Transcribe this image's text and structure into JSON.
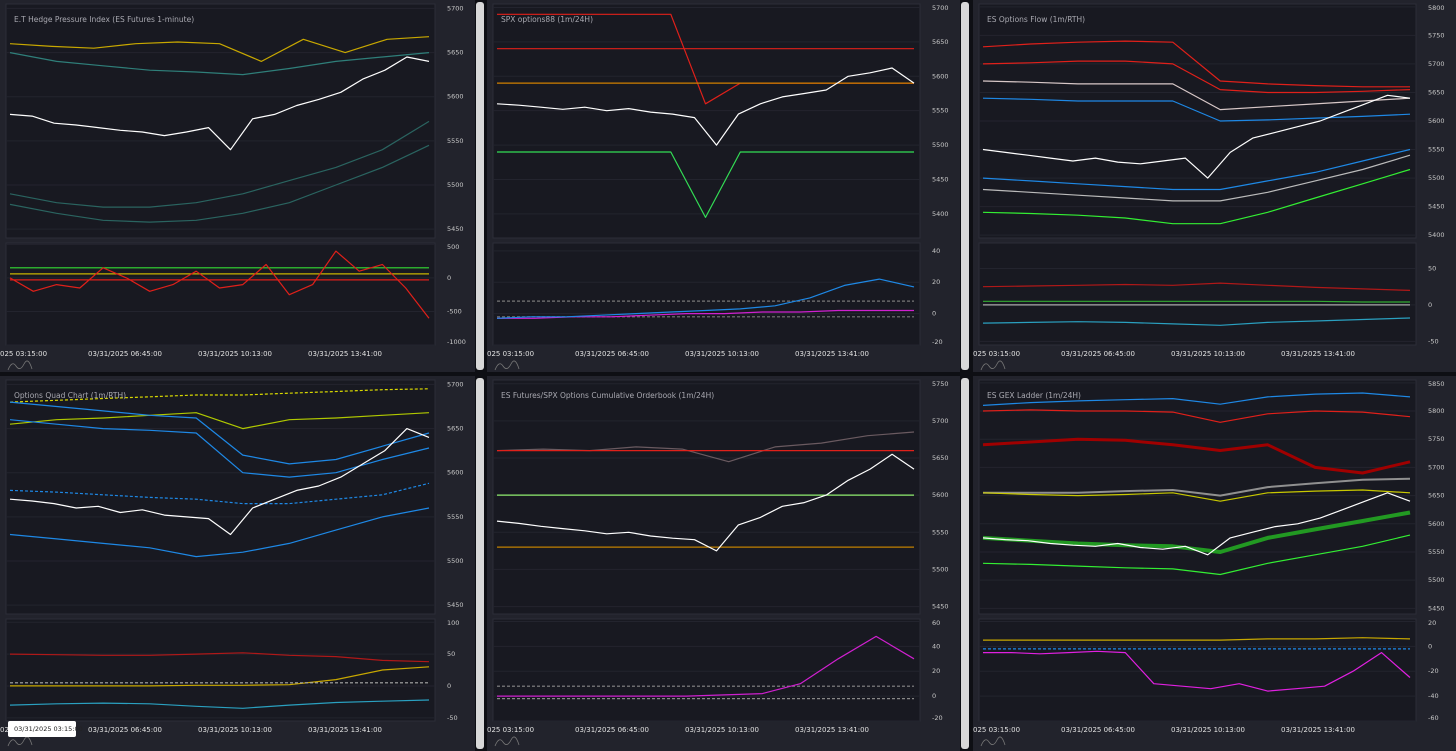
{
  "chart_data": [
    {
      "type": "line",
      "title": "E.T Hedge Pressure Index (ES Futures 1-minute)",
      "xticks": [
        "025 03:15:00",
        "03/31/2025 06:45:00",
        "03/31/2025 10:13:00",
        "03/31/2025 13:41:00"
      ],
      "ylim": [
        5440,
        5705
      ],
      "yticks": [
        5450,
        5500,
        5550,
        5600,
        5650,
        5700
      ],
      "series": [
        {
          "color": "#c8a800",
          "values": [
            5660,
            5657,
            5655,
            5660,
            5662,
            5660,
            5640,
            5665,
            5650,
            5665,
            5668
          ]
        },
        {
          "color": "#2f7f7a",
          "values": [
            5650,
            5640,
            5635,
            5630,
            5628,
            5625,
            5632,
            5640,
            5645,
            5650
          ]
        },
        {
          "color": "#2a6460",
          "values": [
            5490,
            5480,
            5475,
            5475,
            5480,
            5490,
            5505,
            5520,
            5540,
            5572
          ]
        },
        {
          "color": "#2a6460",
          "values": [
            5478,
            5468,
            5460,
            5458,
            5460,
            5468,
            5480,
            5500,
            5520,
            5545
          ]
        },
        {
          "color": "#ffffff",
          "values": [
            5580,
            5578,
            5570,
            5568,
            5565,
            5562,
            5560,
            5556,
            5560,
            5565,
            5540,
            5575,
            5580,
            5590,
            5597,
            5605,
            5620,
            5630,
            5645,
            5640
          ]
        }
      ],
      "lower": {
        "ylim": [
          -1000,
          520
        ],
        "yticks": [
          -1000,
          -500,
          0,
          500
        ],
        "series": [
          {
            "color": "#33dd33",
            "values": [
              150,
              150
            ]
          },
          {
            "color": "#c8b400",
            "values": [
              60,
              60
            ]
          },
          {
            "color": "#e0201a",
            "values": [
              -30,
              -30
            ]
          },
          {
            "color": "#e0201a",
            "values": [
              0,
              -200,
              -100,
              -150,
              150,
              0,
              -200,
              -100,
              100,
              -150,
              -100,
              200,
              -250,
              -100,
              400,
              100,
              200,
              -150,
              -600
            ]
          }
        ]
      }
    },
    {
      "type": "line",
      "title": "SPX options88 (1m/24H)",
      "xticks": [
        "025 03:15:00",
        "03/31/2025 06:45:00",
        "03/31/2025 10:13:00",
        "03/31/2025 13:41:00"
      ],
      "ylim": [
        5365,
        5705
      ],
      "yticks": [
        5400,
        5450,
        5500,
        5550,
        5600,
        5650,
        5700
      ],
      "series": [
        {
          "color": "#e0201a",
          "values": [
            5640,
            5640
          ]
        },
        {
          "color": "#e0201a",
          "values": [
            5690,
            5690,
            5690,
            5690,
            5690,
            5690,
            5560,
            5590,
            5590,
            5590,
            5590,
            5590,
            5590
          ]
        },
        {
          "color": "#d08000",
          "values": [
            5590,
            5590
          ]
        },
        {
          "color": "#33dd55",
          "values": [
            5490,
            5490,
            5490,
            5490,
            5490,
            5490,
            5395,
            5490,
            5490,
            5490,
            5490,
            5490,
            5490
          ]
        },
        {
          "color": "#ffffff",
          "values": [
            5560,
            5558,
            5555,
            5552,
            5555,
            5550,
            5553,
            5548,
            5545,
            5540,
            5500,
            5545,
            5560,
            5570,
            5575,
            5580,
            5600,
            5605,
            5612,
            5590
          ]
        }
      ],
      "lower": {
        "ylim": [
          -20,
          45
        ],
        "yticks": [
          -20,
          0,
          20,
          40
        ],
        "series": [
          {
            "color": "#777777",
            "dash": true,
            "values": [
              8,
              8
            ]
          },
          {
            "color": "#777777",
            "dash": true,
            "values": [
              -2,
              -2
            ]
          },
          {
            "color": "#d020d0",
            "values": [
              -3,
              -3,
              -2,
              -2,
              -1,
              0,
              0,
              1,
              1,
              2,
              2,
              2
            ]
          },
          {
            "color": "#1e88e5",
            "values": [
              -3,
              -2,
              -2,
              -1,
              0,
              1,
              2,
              3,
              5,
              10,
              18,
              22,
              17
            ]
          }
        ]
      }
    },
    {
      "type": "line",
      "title": "ES Options Flow (1m/RTH)",
      "xticks": [
        "025 03:15:00",
        "03/31/2025 06:45:00",
        "03/31/2025 10:13:00",
        "03/31/2025 13:41:00"
      ],
      "ylim": [
        5395,
        5805
      ],
      "yticks": [
        5400,
        5450,
        5500,
        5550,
        5600,
        5650,
        5700,
        5750,
        5800
      ],
      "series": [
        {
          "color": "#e0201a",
          "values": [
            5730,
            5735,
            5738,
            5740,
            5738,
            5670,
            5665,
            5662,
            5660,
            5660
          ]
        },
        {
          "color": "#e0201a",
          "values": [
            5700,
            5702,
            5705,
            5705,
            5700,
            5655,
            5650,
            5650,
            5652,
            5655
          ]
        },
        {
          "color": "#d8c8c8",
          "values": [
            5670,
            5668,
            5665,
            5665,
            5665,
            5620,
            5625,
            5630,
            5635,
            5640
          ]
        },
        {
          "color": "#1e88e5",
          "values": [
            5640,
            5638,
            5635,
            5635,
            5635,
            5600,
            5602,
            5605,
            5608,
            5612
          ]
        },
        {
          "color": "#1e88e5",
          "values": [
            5500,
            5495,
            5490,
            5485,
            5480,
            5480,
            5495,
            5510,
            5530,
            5550
          ]
        },
        {
          "color": "#bbbbbb",
          "values": [
            5480,
            5475,
            5470,
            5465,
            5460,
            5460,
            5475,
            5495,
            5515,
            5540
          ]
        },
        {
          "color": "#33ee33",
          "values": [
            5440,
            5438,
            5435,
            5430,
            5420,
            5420,
            5440,
            5465,
            5490,
            5515
          ]
        },
        {
          "color": "#ffffff",
          "values": [
            5550,
            5545,
            5540,
            5535,
            5530,
            5535,
            5528,
            5525,
            5530,
            5535,
            5500,
            5545,
            5570,
            5580,
            5590,
            5600,
            5615,
            5630,
            5645,
            5640
          ]
        }
      ],
      "lower": {
        "ylim": [
          -55,
          85
        ],
        "yticks": [
          -50,
          0,
          50
        ],
        "series": [
          {
            "color": "#b01818",
            "values": [
              25,
              26,
              27,
              28,
              27,
              30,
              27,
              24,
              22,
              20
            ]
          },
          {
            "color": "#33aa33",
            "values": [
              5,
              5,
              5,
              5,
              5,
              5,
              5,
              5,
              4,
              4
            ]
          },
          {
            "color": "#aaaaaa",
            "values": [
              0,
              0
            ]
          },
          {
            "color": "#2aa0c0",
            "values": [
              -25,
              -24,
              -23,
              -24,
              -26,
              -28,
              -24,
              -22,
              -20,
              -18
            ]
          }
        ]
      }
    },
    {
      "type": "line",
      "title": "Options Quad Chart (1m/RTH)",
      "cursor_label": "03/31/2025 03:15:00",
      "xticks": [
        "025 03:15:00",
        "03/31/2025 06:45:00",
        "03/31/2025 10:13:00",
        "03/31/2025 13:41:00"
      ],
      "ylim": [
        5440,
        5705
      ],
      "yticks": [
        5450,
        5500,
        5550,
        5600,
        5650,
        5700
      ],
      "series": [
        {
          "color": "#d8d800",
          "dash": true,
          "values": [
            5680,
            5682,
            5684,
            5686,
            5688,
            5688,
            5690,
            5692,
            5694,
            5695
          ]
        },
        {
          "color": "#b0c800",
          "values": [
            5655,
            5660,
            5662,
            5665,
            5668,
            5650,
            5660,
            5662,
            5665,
            5668
          ]
        },
        {
          "color": "#1e88e5",
          "values": [
            5680,
            5675,
            5670,
            5665,
            5662,
            5620,
            5610,
            5615,
            5630,
            5645
          ]
        },
        {
          "color": "#1e88e5",
          "values": [
            5660,
            5655,
            5650,
            5648,
            5645,
            5600,
            5595,
            5600,
            5615,
            5628
          ]
        },
        {
          "color": "#1e88e5",
          "dash": true,
          "values": [
            5580,
            5578,
            5575,
            5572,
            5570,
            5565,
            5565,
            5570,
            5575,
            5588
          ]
        },
        {
          "color": "#1e88e5",
          "values": [
            5530,
            5525,
            5520,
            5515,
            5505,
            5510,
            5520,
            5535,
            5550,
            5560
          ]
        },
        {
          "color": "#ffffff",
          "values": [
            5570,
            5568,
            5565,
            5560,
            5562,
            5555,
            5558,
            5552,
            5550,
            5548,
            5530,
            5560,
            5570,
            5580,
            5585,
            5595,
            5610,
            5625,
            5650,
            5640
          ]
        }
      ],
      "lower": {
        "ylim": [
          -55,
          105
        ],
        "yticks": [
          -50,
          0,
          50,
          100
        ],
        "series": [
          {
            "color": "#b01818",
            "values": [
              50,
              49,
              48,
              48,
              50,
              52,
              48,
              46,
              40,
              38
            ]
          },
          {
            "color": "#c8a800",
            "values": [
              0,
              0,
              0,
              0,
              1,
              1,
              2,
              10,
              25,
              30
            ]
          },
          {
            "color": "#aaaaaa",
            "dash": true,
            "values": [
              5,
              5
            ]
          },
          {
            "color": "#2aa0c0",
            "values": [
              -30,
              -28,
              -27,
              -28,
              -32,
              -35,
              -30,
              -26,
              -24,
              -22
            ]
          }
        ]
      }
    },
    {
      "type": "line",
      "title": "ES Futures/SPX Options Cumulative Orderbook (1m/24H)",
      "xticks": [
        "025 03:15:00",
        "03/31/2025 06:45:00",
        "03/31/2025 10:13:00",
        "03/31/2025 13:41:00"
      ],
      "ylim": [
        5440,
        5755
      ],
      "yticks": [
        5450,
        5500,
        5550,
        5600,
        5650,
        5700,
        5750
      ],
      "series": [
        {
          "color": "#6a5a60",
          "values": [
            5660,
            5662,
            5660,
            5665,
            5662,
            5645,
            5665,
            5670,
            5680,
            5685
          ]
        },
        {
          "color": "#e0201a",
          "values": [
            5660,
            5660
          ]
        },
        {
          "color": "#90ee70",
          "values": [
            5600,
            5600
          ]
        },
        {
          "color": "#c08000",
          "values": [
            5530,
            5530
          ]
        },
        {
          "color": "#ffffff",
          "values": [
            5565,
            5562,
            5558,
            5555,
            5552,
            5548,
            5550,
            5545,
            5542,
            5540,
            5525,
            5560,
            5570,
            5585,
            5590,
            5600,
            5620,
            5635,
            5655,
            5635
          ]
        }
      ],
      "lower": {
        "ylim": [
          -20,
          62
        ],
        "yticks": [
          -20,
          0,
          20,
          40,
          60
        ],
        "series": [
          {
            "color": "#888888",
            "dash": true,
            "values": [
              8,
              8
            ]
          },
          {
            "color": "#888888",
            "dash": true,
            "values": [
              -2,
              -2
            ]
          },
          {
            "color": "#d020d0",
            "values": [
              0,
              0,
              0,
              0,
              0,
              0,
              1,
              2,
              10,
              30,
              48,
              30
            ]
          }
        ]
      }
    },
    {
      "type": "line",
      "title": "ES GEX Ladder (1m/24H)",
      "xticks": [
        "025 03:15:00",
        "03/31/2025 06:45:00",
        "03/31/2025 10:13:00",
        "03/31/2025 13:41:00"
      ],
      "ylim": [
        5440,
        5855
      ],
      "yticks": [
        5450,
        5500,
        5550,
        5600,
        5650,
        5700,
        5750,
        5800,
        5850
      ],
      "series": [
        {
          "color": "#1e88e5",
          "values": [
            5810,
            5815,
            5818,
            5820,
            5822,
            5812,
            5825,
            5830,
            5832,
            5825
          ]
        },
        {
          "color": "#e0201a",
          "values": [
            5800,
            5802,
            5800,
            5800,
            5798,
            5780,
            5795,
            5800,
            5798,
            5790
          ]
        },
        {
          "color": "#a00000",
          "width": 3,
          "values": [
            5740,
            5745,
            5750,
            5748,
            5740,
            5730,
            5740,
            5700,
            5690,
            5710
          ]
        },
        {
          "color": "#909090",
          "width": 2,
          "values": [
            5655,
            5655,
            5655,
            5658,
            5660,
            5650,
            5665,
            5672,
            5678,
            5680
          ]
        },
        {
          "color": "#c8c800",
          "values": [
            5655,
            5652,
            5650,
            5652,
            5655,
            5640,
            5655,
            5658,
            5660,
            5655
          ]
        },
        {
          "color": "#229922",
          "width": 4,
          "values": [
            5575,
            5570,
            5565,
            5562,
            5560,
            5550,
            5575,
            5590,
            5605,
            5620
          ]
        },
        {
          "color": "#33ee33",
          "values": [
            5530,
            5528,
            5525,
            5522,
            5520,
            5510,
            5530,
            5545,
            5560,
            5580
          ]
        },
        {
          "color": "#ffffff",
          "values": [
            5575,
            5572,
            5570,
            5565,
            5562,
            5560,
            5565,
            5558,
            5555,
            5560,
            5545,
            5575,
            5585,
            5595,
            5600,
            5610,
            5625,
            5640,
            5655,
            5640
          ]
        }
      ],
      "lower": {
        "ylim": [
          -60,
          22
        ],
        "yticks": [
          -60,
          -40,
          -20,
          0,
          20
        ],
        "series": [
          {
            "color": "#c8a800",
            "values": [
              5,
              5,
              5,
              5,
              5,
              5,
              6,
              6,
              7,
              6
            ]
          },
          {
            "color": "#1e88e5",
            "dash": true,
            "values": [
              -2,
              -2
            ]
          },
          {
            "color": "#e020e0",
            "values": [
              -5,
              -5,
              -6,
              -5,
              -4,
              -5,
              -30,
              -32,
              -34,
              -30,
              -36,
              -34,
              -32,
              -20,
              -5,
              -25
            ]
          }
        ]
      }
    }
  ]
}
